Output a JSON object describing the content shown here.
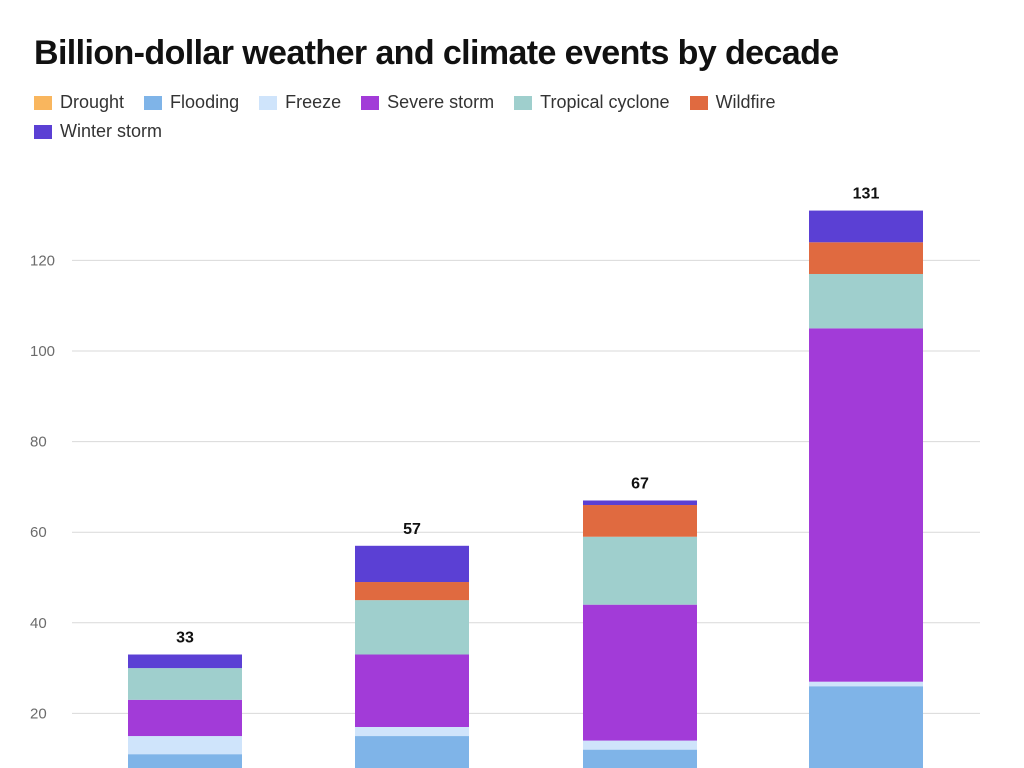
{
  "title": "Billion-dollar weather and climate events by decade",
  "chart_data": {
    "type": "bar",
    "stacked": true,
    "title": "Billion-dollar weather and climate events by decade",
    "xlabel": "",
    "ylabel": "",
    "ylim": [
      0,
      134
    ],
    "y_ticks": [
      20,
      40,
      60,
      80,
      100,
      120
    ],
    "grid": true,
    "legend_position": "top",
    "categories": [
      "",
      "",
      "",
      ""
    ],
    "totals": [
      33,
      57,
      67,
      131
    ],
    "series": [
      {
        "name": "Drought",
        "color": "#f9b65e",
        "values": [
          0,
          0,
          0,
          0
        ]
      },
      {
        "name": "Flooding",
        "color": "#7fb4e8",
        "values": [
          11,
          15,
          12,
          26
        ]
      },
      {
        "name": "Freeze",
        "color": "#cfe4fb",
        "values": [
          4,
          2,
          2,
          1
        ]
      },
      {
        "name": "Severe storm",
        "color": "#a23bd8",
        "values": [
          8,
          16,
          30,
          78
        ]
      },
      {
        "name": "Tropical cyclone",
        "color": "#9fcfcd",
        "values": [
          7,
          12,
          15,
          12
        ]
      },
      {
        "name": "Wildfire",
        "color": "#e06a40",
        "values": [
          0,
          4,
          7,
          7
        ]
      },
      {
        "name": "Winter storm",
        "color": "#5b40d4",
        "values": [
          3,
          8,
          1,
          7
        ]
      }
    ]
  }
}
